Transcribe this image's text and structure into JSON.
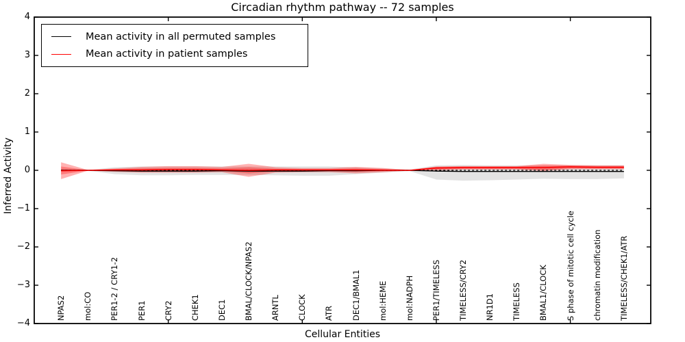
{
  "figure": {
    "title": "Circadian rhythm pathway -- 72 samples",
    "xlabel": "Cellular Entities",
    "ylabel": "Inferred Activity"
  },
  "legend": {
    "items": [
      {
        "label": "Mean activity in all permuted samples",
        "color": "#000000"
      },
      {
        "label": "Mean activity in patient samples",
        "color": "#ff0000"
      }
    ]
  },
  "chart_data": {
    "type": "area",
    "title": "Circadian rhythm pathway -- 72 samples",
    "xlabel": "Cellular Entities",
    "ylabel": "Inferred Activity",
    "grid": false,
    "legend_position": "upper left",
    "xlim": [
      -1,
      22
    ],
    "ylim": [
      -4,
      4
    ],
    "yticks": [
      4,
      3,
      2,
      1,
      0,
      -1,
      -2,
      -3,
      -4
    ],
    "ytick_labels": [
      "4",
      "3",
      "2",
      "1",
      "0",
      "−1",
      "−2",
      "−3",
      "−4"
    ],
    "xtick_marks": [
      4,
      9,
      14,
      19
    ],
    "categories": [
      "NPAS2",
      "mol:CO",
      "PER1-2 / CRY1-2",
      "PER1",
      "CRY2",
      "CHEK1",
      "DEC1",
      "BMAL/CLOCK/NPAS2",
      "ARNTL",
      "CLOCK",
      "ATR",
      "DEC1/BMAL1",
      "mol:HEME",
      "mol:NADPH",
      "PER1/TIMELESS",
      "TIMELESS/CRY2",
      "NR1D1",
      "TIMELESS",
      "BMAL1/CLOCK",
      "S phase of mitotic cell cycle",
      "chromatin modification",
      "TIMELESS/CHEK1/ATR"
    ],
    "series": [
      {
        "name": "Mean activity in all permuted samples",
        "color": "#000000",
        "style": "solid",
        "width": 1.4,
        "values": [
          0,
          0,
          -0.01,
          -0.02,
          -0.02,
          -0.02,
          -0.01,
          -0.02,
          -0.02,
          -0.02,
          -0.01,
          -0.01,
          0,
          0,
          -0.02,
          -0.03,
          -0.03,
          -0.03,
          -0.03,
          -0.03,
          -0.03,
          -0.03
        ]
      },
      {
        "name": "Zero baseline",
        "color": "#000000",
        "style": "dashed",
        "width": 1.2,
        "values": [
          0,
          0,
          0,
          0,
          0,
          0,
          0,
          0,
          0,
          0,
          0,
          0,
          0,
          0,
          0,
          0,
          0,
          0,
          0,
          0,
          0,
          0
        ]
      },
      {
        "name": "Mean activity in patient samples",
        "color": "#ff0000",
        "style": "solid",
        "width": 1.6,
        "values": [
          -0.01,
          0,
          0.01,
          0.01,
          0.02,
          0.02,
          0.01,
          0,
          0.01,
          0.01,
          0.01,
          0.01,
          0.005,
          0,
          0.06,
          0.07,
          0.07,
          0.07,
          0.07,
          0.09,
          0.08,
          0.08
        ]
      }
    ],
    "bands": [
      {
        "name": "permuted-samples-std-band",
        "color": "#999999",
        "opacity": 0.28,
        "upper": [
          0.04,
          0.01,
          0.08,
          0.1,
          0.1,
          0.1,
          0.1,
          0.1,
          0.1,
          0.1,
          0.1,
          0.08,
          0.05,
          0.02,
          0.13,
          0.14,
          0.13,
          0.13,
          0.12,
          0.13,
          0.13,
          0.13
        ],
        "lower": [
          -0.04,
          -0.01,
          -0.1,
          -0.13,
          -0.13,
          -0.12,
          -0.12,
          -0.12,
          -0.13,
          -0.14,
          -0.14,
          -0.1,
          -0.06,
          -0.02,
          -0.24,
          -0.27,
          -0.26,
          -0.24,
          -0.22,
          -0.23,
          -0.23,
          -0.21
        ]
      },
      {
        "name": "patient-samples-std-band-outer",
        "color": "#ff0000",
        "opacity": 0.3,
        "upper": [
          0.21,
          0.01,
          0.05,
          0.09,
          0.11,
          0.11,
          0.09,
          0.17,
          0.08,
          0.06,
          0.06,
          0.09,
          0.06,
          0.01,
          0.1,
          0.11,
          0.11,
          0.11,
          0.17,
          0.14,
          0.13,
          0.13
        ],
        "lower": [
          -0.23,
          -0.01,
          -0.04,
          -0.06,
          -0.06,
          -0.06,
          -0.05,
          -0.17,
          -0.06,
          -0.05,
          -0.05,
          -0.08,
          -0.05,
          -0.01,
          0.0,
          0.02,
          0.02,
          0.02,
          -0.02,
          0.03,
          0.03,
          0.03
        ]
      },
      {
        "name": "patient-samples-std-band-inner",
        "color": "#ff0000",
        "opacity": 0.3,
        "upper": [
          0.1,
          0.005,
          0.03,
          0.05,
          0.06,
          0.06,
          0.05,
          0.08,
          0.04,
          0.03,
          0.03,
          0.05,
          0.03,
          0.005,
          0.09,
          0.1,
          0.1,
          0.1,
          0.13,
          0.12,
          0.11,
          0.11
        ],
        "lower": [
          -0.11,
          -0.005,
          -0.02,
          -0.03,
          -0.03,
          -0.03,
          -0.02,
          -0.08,
          -0.03,
          -0.02,
          -0.02,
          -0.04,
          -0.02,
          -0.005,
          0.02,
          0.04,
          0.04,
          0.04,
          0.01,
          0.05,
          0.05,
          0.05
        ]
      }
    ]
  }
}
